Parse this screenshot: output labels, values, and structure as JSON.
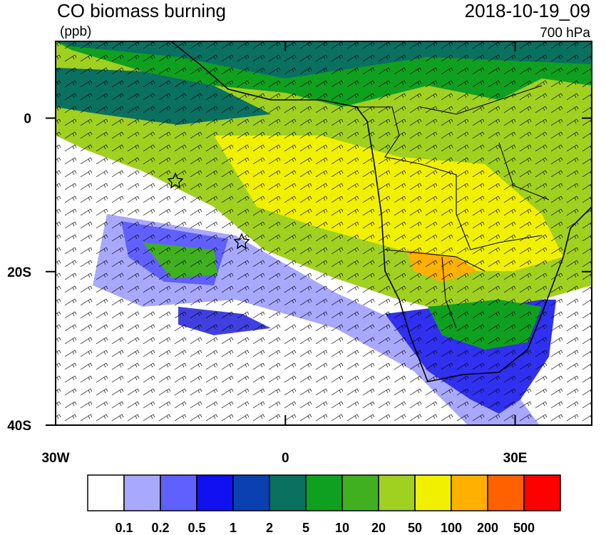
{
  "header": {
    "title": "CO biomass burning",
    "units": "(ppb)",
    "time": "2018-10-19_09",
    "level": "700 hPa"
  },
  "axes": {
    "xlim": [
      -30,
      40
    ],
    "ylim": [
      -40,
      10
    ],
    "xticks": [
      {
        "value": -30,
        "label": "30W"
      },
      0,
      {
        "value": 30,
        "label": "30E"
      }
    ],
    "yticks": [
      0,
      {
        "value": -20,
        "label": "20S"
      },
      {
        "value": -40,
        "label": "40S"
      }
    ]
  },
  "colorbar": {
    "colors": [
      "#ffffff",
      "#a8a8ff",
      "#6060ff",
      "#1010f0",
      "#0a40b0",
      "#0a7060",
      "#10a020",
      "#40b020",
      "#a0d020",
      "#f0f000",
      "#ffb000",
      "#ff6000",
      "#ff0000"
    ],
    "labels": [
      0.1,
      0.2,
      0.5,
      1,
      2,
      5,
      10,
      20,
      50,
      100,
      200,
      500
    ]
  }
}
